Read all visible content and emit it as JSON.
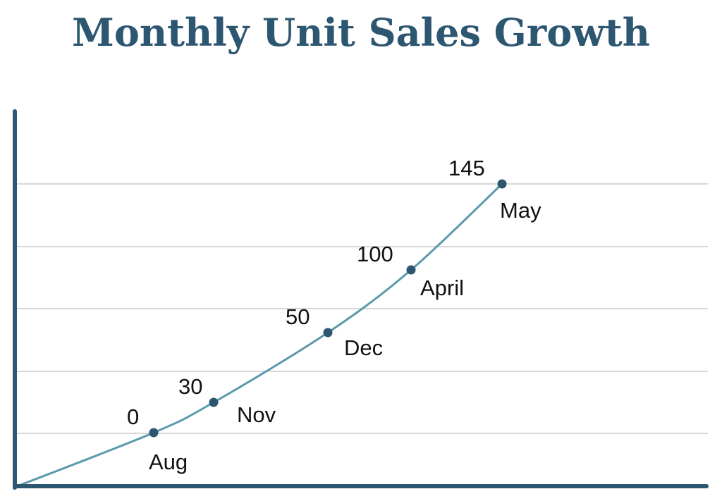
{
  "chart_data": {
    "type": "line",
    "title": "Monthly Unit Sales Growth",
    "xlabel": "",
    "ylabel": "",
    "grid": true,
    "legend": "none",
    "points": [
      {
        "category": "Aug",
        "value": 0
      },
      {
        "category": "Nov",
        "value": 30
      },
      {
        "category": "Dec",
        "value": 50
      },
      {
        "category": "April",
        "value": 100
      },
      {
        "category": "May",
        "value": 145
      }
    ],
    "colors": {
      "title": "#2d5670",
      "line": "#5a9aac",
      "marker": "#2d5670",
      "axis": "#2d5670",
      "grid": "#cccccc"
    }
  }
}
